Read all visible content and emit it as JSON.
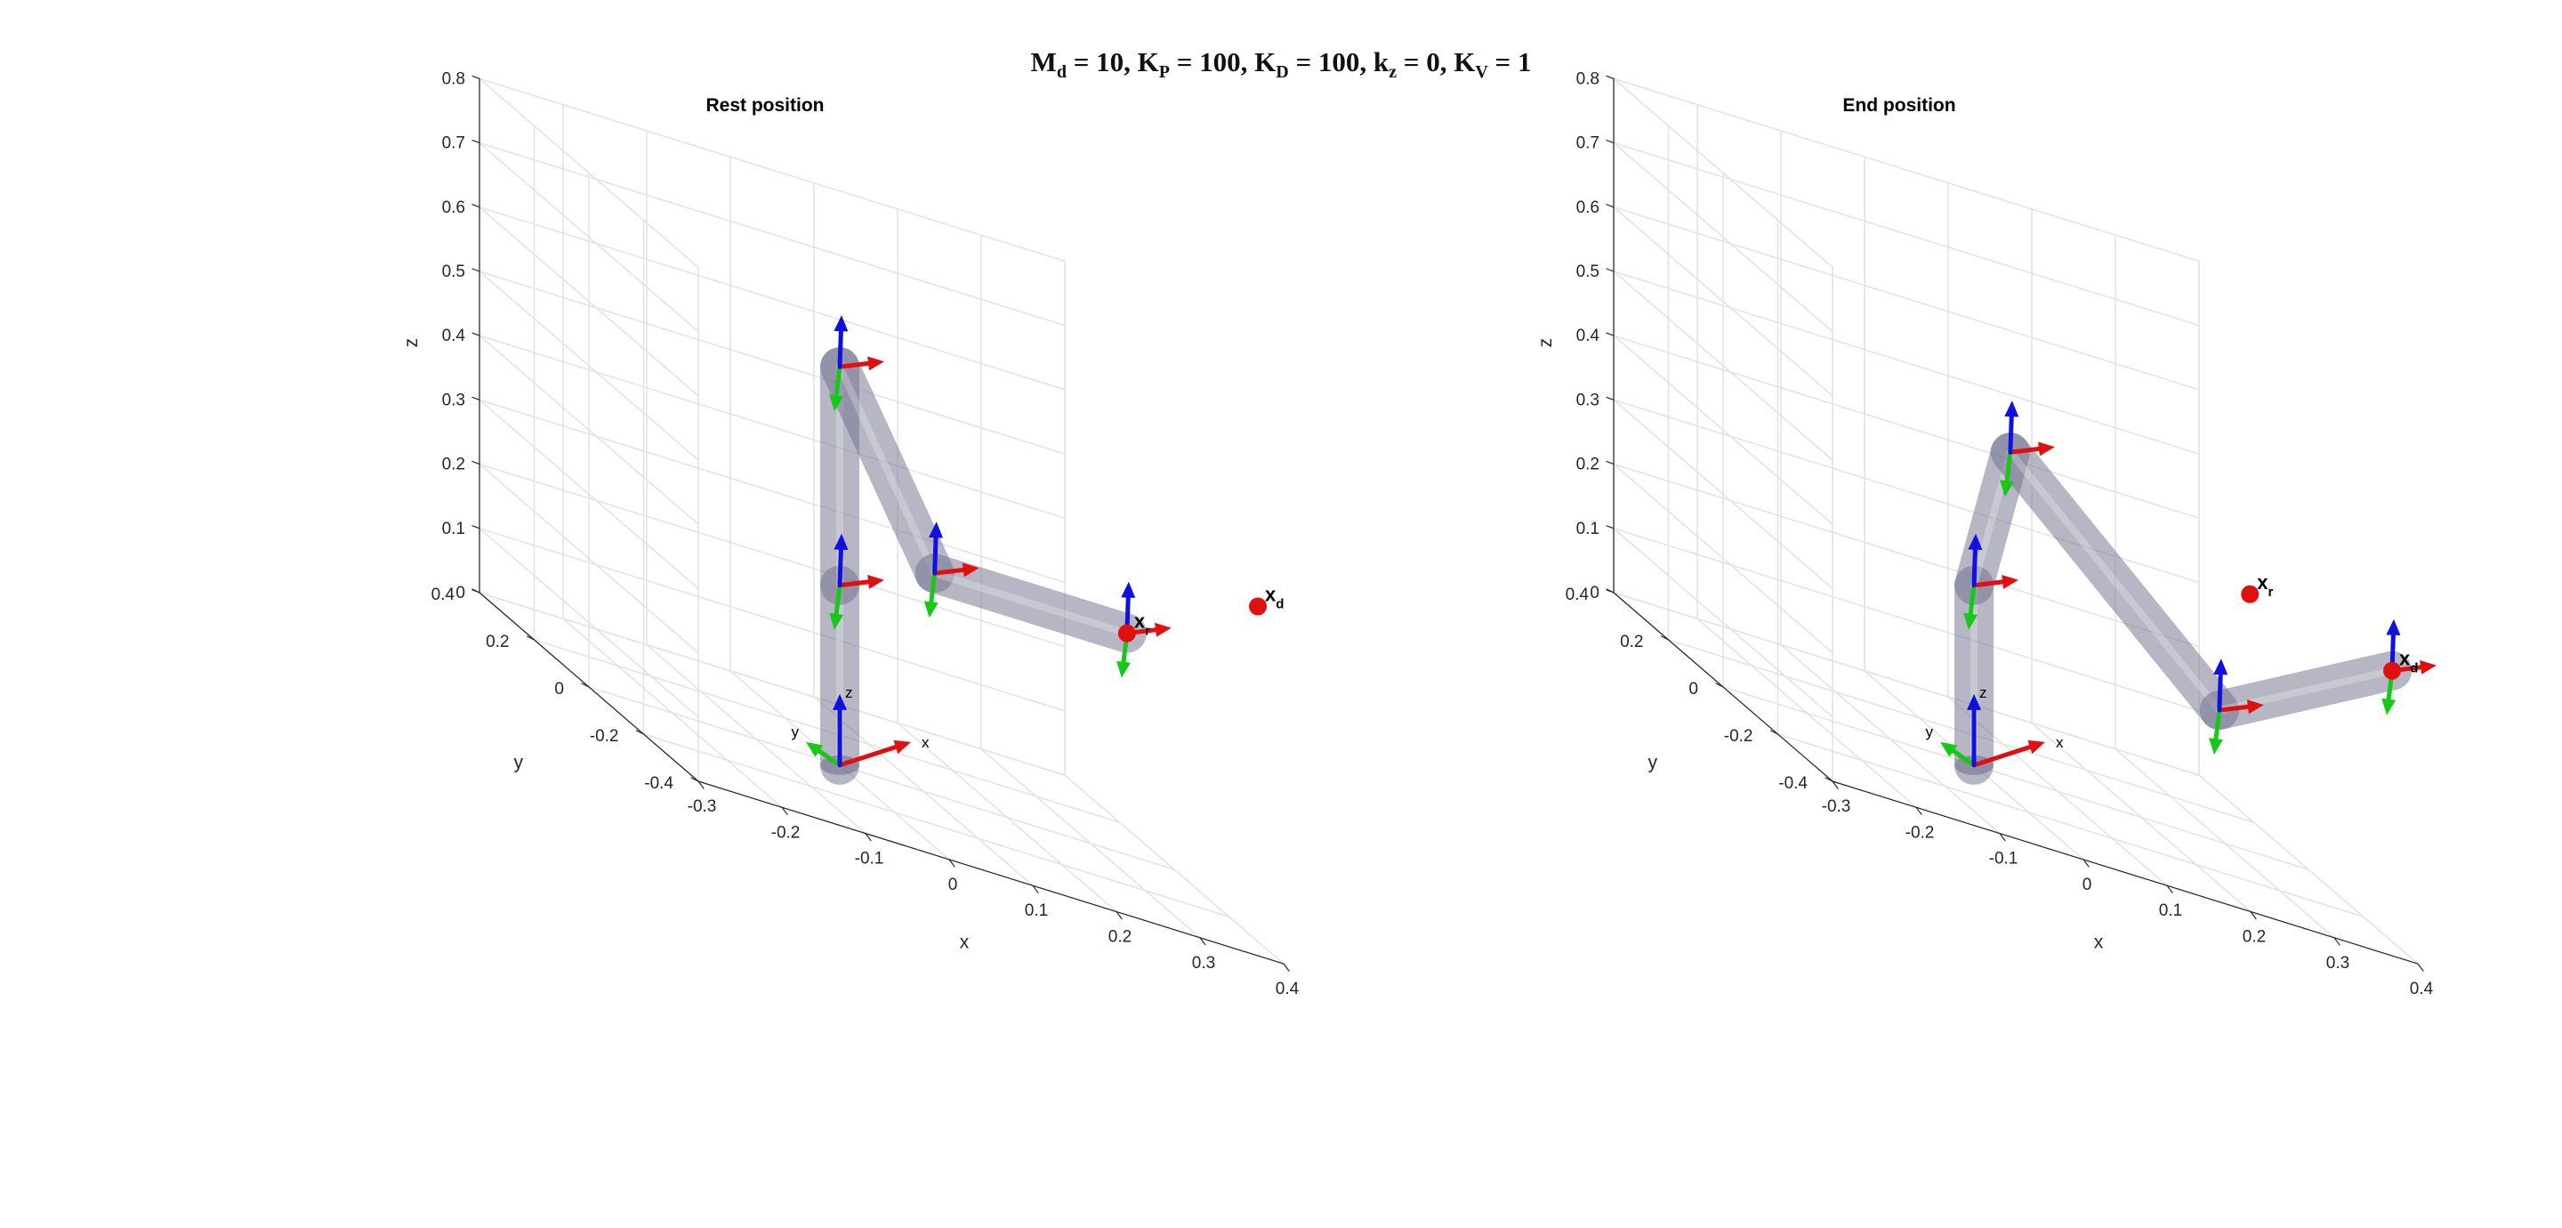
{
  "figure": {
    "suptitle": {
      "Md": "10",
      "KP": "100",
      "KD": "100",
      "kz": "0",
      "KV": "1"
    }
  },
  "chart_data": [
    {
      "type": "scatter3d",
      "title": "Rest position",
      "xlabel": "x",
      "ylabel": "y",
      "zlabel": "z",
      "xlim": [
        -0.3,
        0.4
      ],
      "ylim": [
        -0.4,
        0.4
      ],
      "zlim": [
        0,
        0.8
      ],
      "xticks": [
        "-0.3",
        "-0.2",
        "-0.1",
        "0",
        "0.1",
        "0.2",
        "0.3",
        "0.4"
      ],
      "yticks": [
        "-0.4",
        "-0.2",
        "0",
        "0.2",
        "0.4"
      ],
      "zticks": [
        "0",
        "0.1",
        "0.2",
        "0.3",
        "0.4",
        "0.5",
        "0.6",
        "0.7",
        "0.8"
      ],
      "grid": true,
      "base_frame_labels": [
        "x",
        "y",
        "z"
      ],
      "robot_links": [
        {
          "from": [
            0,
            0,
            0
          ],
          "to": [
            0,
            0,
            0.28
          ]
        },
        {
          "from": [
            0,
            0,
            0.28
          ],
          "to": [
            0,
            0,
            0.62
          ]
        },
        {
          "from": [
            0,
            0,
            0.62
          ],
          "to": [
            0.12,
            0.02,
            0.34
          ]
        },
        {
          "from": [
            0.12,
            0.02,
            0.34
          ],
          "to": [
            0.35,
            0.02,
            0.34
          ]
        }
      ],
      "frame_origins": [
        [
          0,
          0,
          0.28
        ],
        [
          0,
          0,
          0.62
        ],
        [
          0.12,
          0.02,
          0.34
        ],
        [
          0.35,
          0.02,
          0.34
        ]
      ],
      "markers": [
        {
          "name": "x",
          "subscript": "d",
          "point": [
            0.5,
            0.0,
            0.45
          ],
          "color": "#e01010"
        },
        {
          "name": "x",
          "subscript": "r",
          "point": [
            0.35,
            0.02,
            0.34
          ],
          "color": "#e01010"
        }
      ]
    },
    {
      "type": "scatter3d",
      "title": "End position",
      "xlabel": "x",
      "ylabel": "y",
      "zlabel": "z",
      "xlim": [
        -0.3,
        0.4
      ],
      "ylim": [
        -0.4,
        0.4
      ],
      "zlim": [
        0,
        0.8
      ],
      "xticks": [
        "-0.3",
        "-0.2",
        "-0.1",
        "0",
        "0.1",
        "0.2",
        "0.3",
        "0.4"
      ],
      "yticks": [
        "-0.4",
        "-0.2",
        "0",
        "0.2",
        "0.4"
      ],
      "zticks": [
        "0",
        "0.1",
        "0.2",
        "0.3",
        "0.4",
        "0.5",
        "0.6",
        "0.7",
        "0.8"
      ],
      "grid": true,
      "base_frame_labels": [
        "x",
        "y",
        "z"
      ],
      "robot_links": [
        {
          "from": [
            0,
            0,
            0
          ],
          "to": [
            0,
            0,
            0.28
          ]
        },
        {
          "from": [
            0,
            0,
            0.28
          ],
          "to": [
            0.05,
            0.02,
            0.5
          ]
        },
        {
          "from": [
            0.05,
            0.02,
            0.5
          ],
          "to": [
            0.3,
            0.02,
            0.2
          ]
        },
        {
          "from": [
            0.3,
            0.02,
            0.2
          ],
          "to": [
            0.5,
            0.0,
            0.35
          ]
        }
      ],
      "frame_origins": [
        [
          0,
          0,
          0.28
        ],
        [
          0.05,
          0.02,
          0.5
        ],
        [
          0.3,
          0.02,
          0.2
        ],
        [
          0.5,
          0.0,
          0.35
        ]
      ],
      "markers": [
        {
          "name": "x",
          "subscript": "r",
          "point": [
            0.33,
            0.0,
            0.4
          ],
          "color": "#e01010"
        },
        {
          "name": "x",
          "subscript": "d",
          "point": [
            0.5,
            0.0,
            0.35
          ],
          "color": "#e01010"
        }
      ]
    }
  ],
  "colors": {
    "grid": "#e2e2e2",
    "axis": "#262626",
    "link": "#6e6e8c",
    "x_axis": "#e01010",
    "y_axis": "#18c818",
    "z_axis": "#1010e0"
  }
}
